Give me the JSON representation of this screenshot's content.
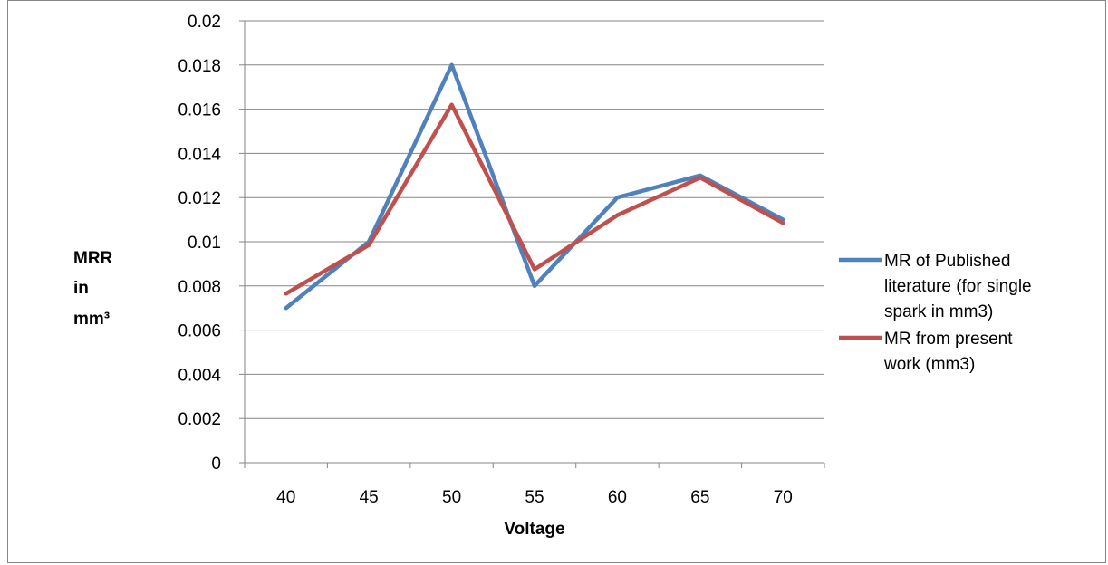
{
  "chart_data": {
    "type": "line",
    "x": [
      "40",
      "45",
      "50",
      "55",
      "60",
      "65",
      "70"
    ],
    "xlabel": "Voltage",
    "ylabel": [
      "MRR",
      "in",
      "mm³"
    ],
    "ylim": [
      0,
      0.02
    ],
    "yticks": [
      "0",
      "0.002",
      "0.004",
      "0.006",
      "0.008",
      "0.01",
      "0.012",
      "0.014",
      "0.016",
      "0.018",
      "0.02"
    ],
    "grid": "horizontal",
    "legend": "right",
    "series": [
      {
        "name": [
          "MR of Published",
          "literature (for single",
          "spark in mm3)"
        ],
        "color": "#4f81bd",
        "values": [
          0.007,
          0.01,
          0.018,
          0.008,
          0.012,
          0.013,
          0.011
        ]
      },
      {
        "name": [
          "MR from present",
          "work (mm3)"
        ],
        "color": "#c0504d",
        "values": [
          0.00765,
          0.00985,
          0.0162,
          0.00875,
          0.0112,
          0.0129,
          0.01085
        ]
      }
    ]
  }
}
